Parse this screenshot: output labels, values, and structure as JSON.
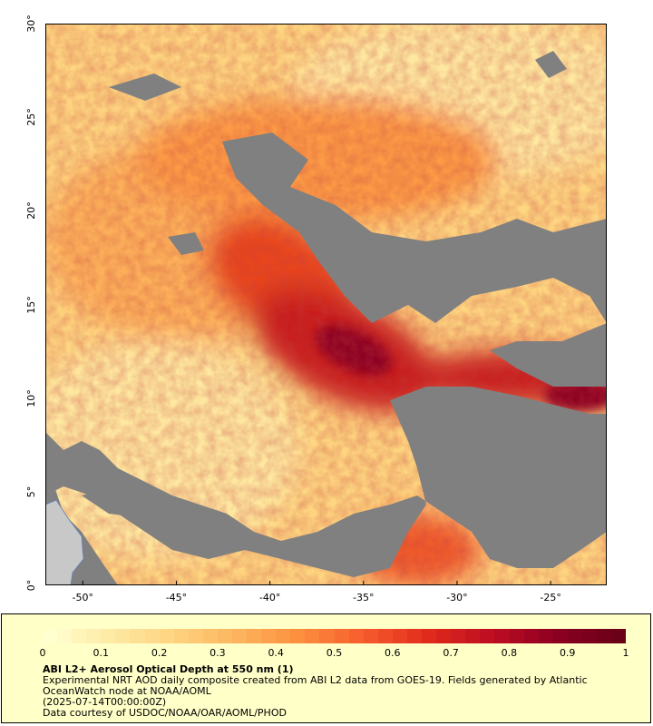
{
  "map": {
    "y_ticks": [
      "30°",
      "25°",
      "20°",
      "15°",
      "10°",
      "5°",
      "0°"
    ],
    "x_ticks": [
      "-50°",
      "-45°",
      "-40°",
      "-35°",
      "-30°",
      "-25°"
    ],
    "lon_range": [
      -52,
      -22
    ],
    "lat_range": [
      0,
      30
    ],
    "colors": {
      "no_data": "#808080",
      "land": "#c8c8c8",
      "scale": [
        "#ffffd0",
        "#fee9a3",
        "#fed27e",
        "#fdb35d",
        "#fc8d3c",
        "#f65a2c",
        "#e02a1c",
        "#be0d22",
        "#8c0022",
        "#6b0019"
      ]
    }
  },
  "legend": {
    "colorbar_ticks": [
      "0",
      "0.1",
      "0.2",
      "0.3",
      "0.4",
      "0.5",
      "0.6",
      "0.7",
      "0.8",
      "0.9",
      "1"
    ],
    "title": "ABI L2+ Aerosol Optical Depth at 550 nm (1)",
    "line1": "Experimental NRT AOD daily composite created from ABI L2 data from GOES-19. Fields generated by Atlantic OceanWatch node at NOAA/AOML",
    "line2": "(2025-07-14T00:00:00Z)",
    "line3": "Data courtesy of USDOC/NOAA/OAR/AOML/PHOD"
  }
}
